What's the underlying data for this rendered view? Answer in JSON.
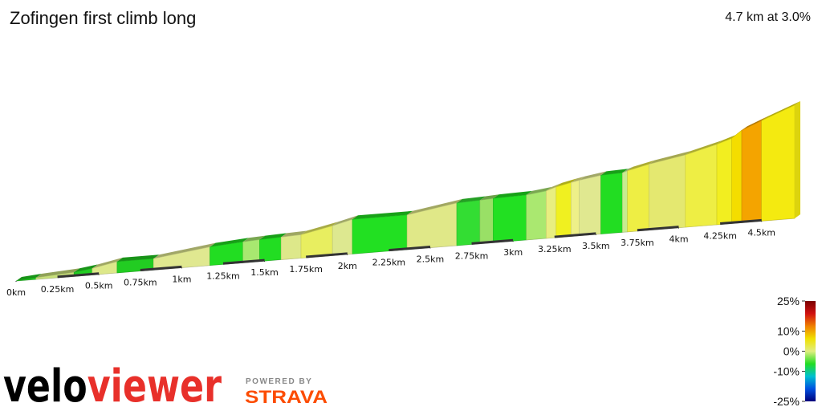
{
  "chart_data": {
    "type": "elevation-profile",
    "title": "Zofingen first climb long",
    "subtitle": "4.7 km at 3.0%",
    "x": [
      0,
      0.12,
      0.35,
      0.46,
      0.61,
      0.83,
      1.17,
      1.37,
      1.47,
      1.6,
      1.72,
      1.91,
      2.03,
      2.36,
      2.66,
      2.8,
      2.88,
      3.08,
      3.2,
      3.26,
      3.35,
      3.4,
      3.53,
      3.66,
      3.69,
      3.82,
      4.04,
      4.23,
      4.32,
      4.38,
      4.5,
      4.7
    ],
    "elevation": [
      0,
      2,
      5,
      8,
      14,
      14,
      23,
      26,
      27,
      28,
      29,
      37,
      43,
      43,
      53,
      54,
      55,
      56,
      59,
      63,
      67,
      69,
      73,
      74,
      76,
      82,
      90,
      100,
      106,
      115,
      125,
      141
    ],
    "segment_colors": [
      "#22cc22",
      "#c8e07a",
      "#22cc22",
      "#dde88a",
      "#22cc22",
      "#e0e890",
      "#22dd22",
      "#a8e870",
      "#22dd22",
      "#dde88a",
      "#e8ee60",
      "#dde890",
      "#22e022",
      "#e0e888",
      "#33dd33",
      "#99e066",
      "#22e022",
      "#aae870",
      "#e8ee80",
      "#f0f020",
      "#eef088",
      "#e0e890",
      "#22dd22",
      "#c8ec90",
      "#eeee44",
      "#e4e870",
      "#eeee44",
      "#f2ee20",
      "#f4dd00",
      "#f4a400",
      "#f4ea10"
    ],
    "xlim": [
      0,
      4.7
    ],
    "xticks": [
      {
        "value": 0,
        "label": "0km"
      },
      {
        "value": 0.25,
        "label": "0.25km"
      },
      {
        "value": 0.5,
        "label": "0.5km"
      },
      {
        "value": 0.75,
        "label": "0.75km"
      },
      {
        "value": 1,
        "label": "1km"
      },
      {
        "value": 1.25,
        "label": "1.25km"
      },
      {
        "value": 1.5,
        "label": "1.5km"
      },
      {
        "value": 1.75,
        "label": "1.75km"
      },
      {
        "value": 2,
        "label": "2km"
      },
      {
        "value": 2.25,
        "label": "2.25km"
      },
      {
        "value": 2.5,
        "label": "2.5km"
      },
      {
        "value": 2.75,
        "label": "2.75km"
      },
      {
        "value": 3,
        "label": "3km"
      },
      {
        "value": 3.25,
        "label": "3.25km"
      },
      {
        "value": 3.5,
        "label": "3.5km"
      },
      {
        "value": 3.75,
        "label": "3.75km"
      },
      {
        "value": 4,
        "label": "4km"
      },
      {
        "value": 4.25,
        "label": "4.25km"
      },
      {
        "value": 4.5,
        "label": "4.5km"
      }
    ],
    "colorbar": {
      "lim": [
        -25,
        25
      ],
      "ticks": [
        {
          "value": 25,
          "label": "25%"
        },
        {
          "value": 10,
          "label": "10%"
        },
        {
          "value": 0,
          "label": "0%"
        },
        {
          "value": -10,
          "label": "-10%"
        },
        {
          "value": -25,
          "label": "-25%"
        }
      ],
      "colors": [
        "#7a0000",
        "#d01010",
        "#f08000",
        "#f0e000",
        "#e0ee80",
        "#22dd22",
        "#00c0d0",
        "#0050e0",
        "#00007a"
      ]
    }
  },
  "branding": {
    "logo_left": "velo",
    "logo_right": "viewer",
    "powered": "POWERED BY",
    "strava": "STRAVA"
  }
}
